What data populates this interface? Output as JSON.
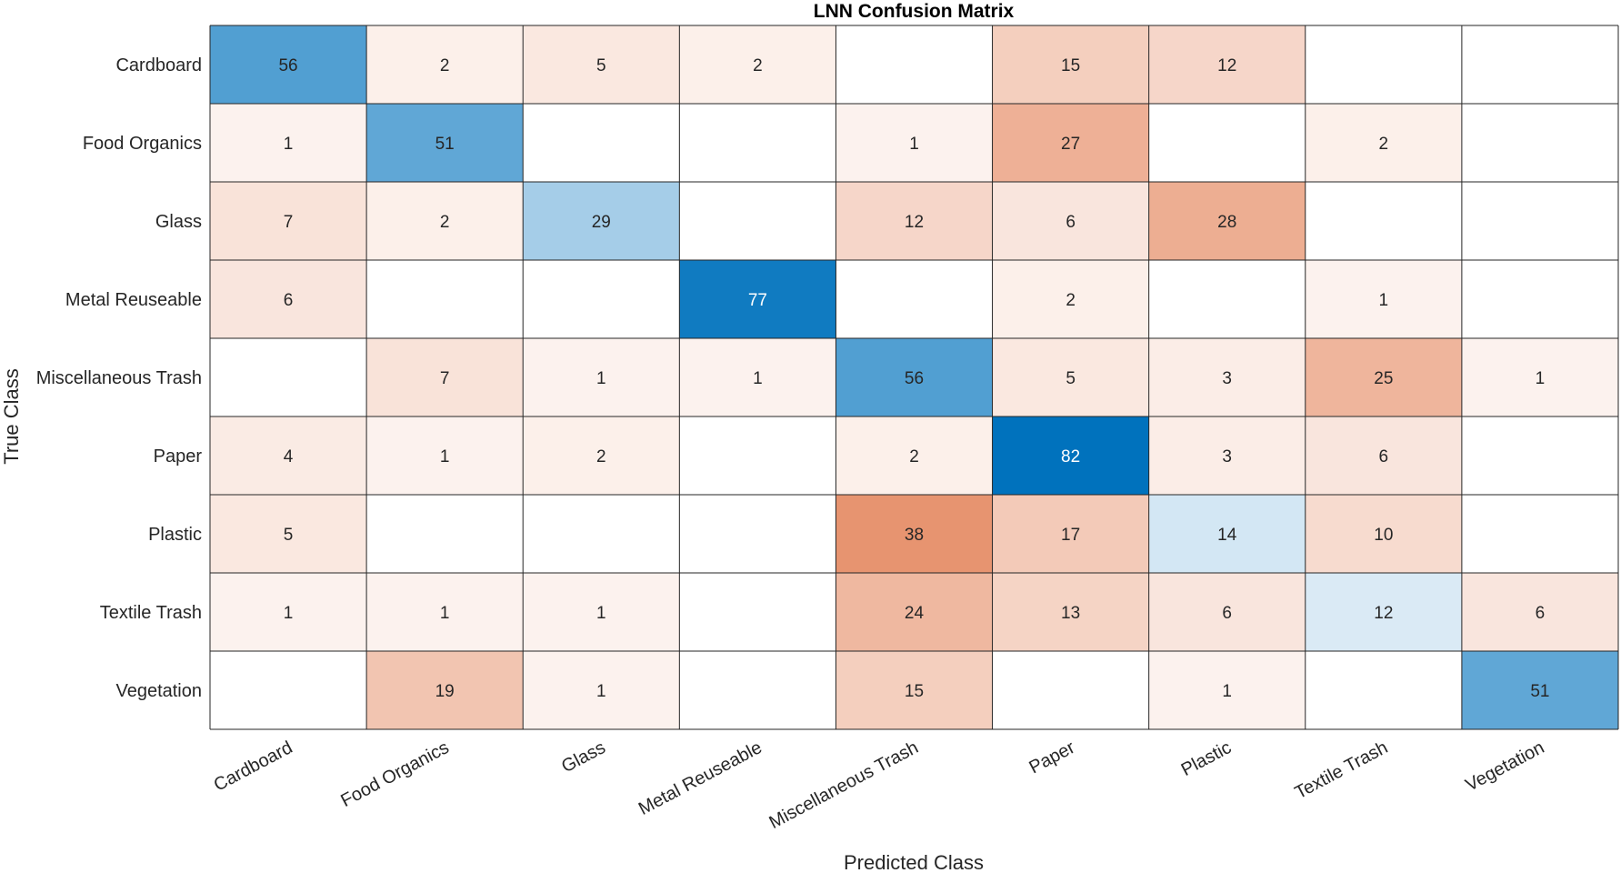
{
  "chart_data": {
    "type": "heatmap",
    "title": "LNN Confusion Matrix",
    "xlabel": "Predicted Class",
    "ylabel": "True Class",
    "row_labels": [
      "Cardboard",
      "Food Organics",
      "Glass",
      "Metal Reuseable",
      "Miscellaneous Trash",
      "Paper",
      "Plastic",
      "Textile Trash",
      "Vegetation"
    ],
    "col_labels": [
      "Cardboard",
      "Food Organics",
      "Glass",
      "Metal Reuseable",
      "Miscellaneous Trash",
      "Paper",
      "Plastic",
      "Textile Trash",
      "Vegetation"
    ],
    "values": [
      [
        56,
        2,
        5,
        2,
        0,
        15,
        12,
        0,
        0
      ],
      [
        1,
        51,
        0,
        0,
        1,
        27,
        0,
        2,
        0
      ],
      [
        7,
        2,
        29,
        0,
        12,
        6,
        28,
        0,
        0
      ],
      [
        6,
        0,
        0,
        77,
        0,
        2,
        0,
        1,
        0
      ],
      [
        0,
        7,
        1,
        1,
        56,
        5,
        3,
        25,
        1
      ],
      [
        4,
        1,
        2,
        0,
        2,
        82,
        3,
        6,
        0
      ],
      [
        5,
        0,
        0,
        0,
        38,
        17,
        14,
        10,
        0
      ],
      [
        1,
        1,
        1,
        0,
        24,
        13,
        6,
        12,
        6
      ],
      [
        0,
        19,
        1,
        0,
        15,
        0,
        1,
        0,
        51
      ]
    ],
    "colors": {
      "diagonal": "#0072bd",
      "off_diagonal": "#d95319",
      "grid": "#262626",
      "text_dark": "#262626",
      "text_light": "#ffffff"
    }
  }
}
